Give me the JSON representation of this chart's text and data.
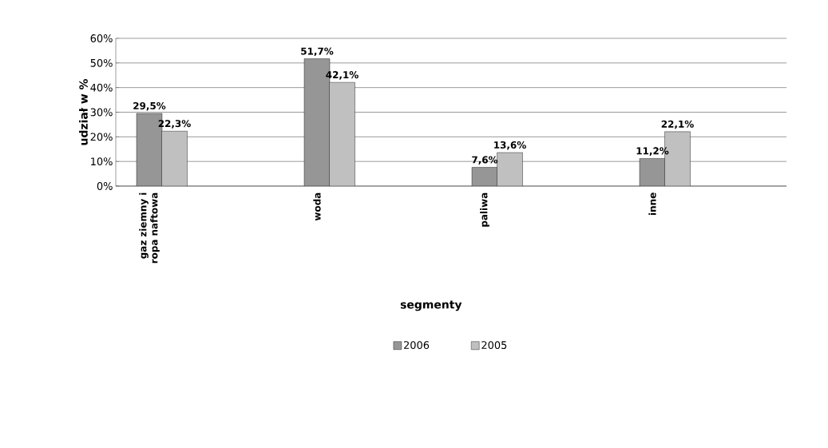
{
  "chart_data": {
    "type": "bar",
    "xlabel": "segmenty",
    "ylabel": "udział w %",
    "categories": [
      "gaz ziemny i ropa naftowa",
      "woda",
      "paliwa",
      "inne"
    ],
    "series": [
      {
        "name": "2006",
        "color": "#969696",
        "values": [
          29.5,
          51.7,
          7.6,
          11.2
        ],
        "value_labels": [
          "29,5%",
          "51,7%",
          "7,6%",
          "11,2%"
        ]
      },
      {
        "name": "2005",
        "color": "#c0c0c0",
        "values": [
          22.3,
          42.1,
          13.6,
          22.1
        ],
        "value_labels": [
          "22,3%",
          "42,1%",
          "13,6%",
          "22,1%"
        ]
      }
    ],
    "ylim": [
      0,
      60
    ],
    "yticks": [
      {
        "value": 0,
        "label": "0%"
      },
      {
        "value": 10,
        "label": "10%"
      },
      {
        "value": 20,
        "label": "20%"
      },
      {
        "value": 30,
        "label": "30%"
      },
      {
        "value": 40,
        "label": "40%"
      },
      {
        "value": 50,
        "label": "50%"
      },
      {
        "value": 60,
        "label": "60%"
      }
    ],
    "grid": "y",
    "legend": "bottom"
  }
}
